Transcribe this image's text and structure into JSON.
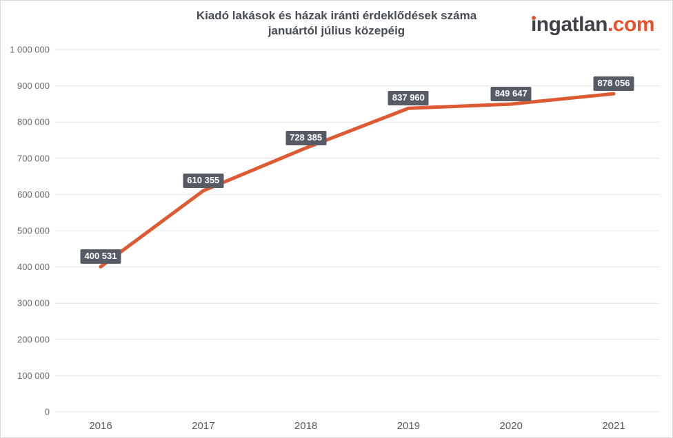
{
  "title": {
    "line1": "Kiadó lakások és házak iránti érdeklődések száma",
    "line2": "januártól július közepéig"
  },
  "logo": {
    "text": "ingatlan.com",
    "i_stem": "ı",
    "rest": "ngatlan",
    "tld": ".com",
    "dark_color": "#3f4347",
    "accent_color": "#e8512d"
  },
  "chart_data": {
    "type": "line",
    "title": "Kiadó lakások és házak iránti érdeklődések száma januártól július közepéig",
    "categories": [
      "2016",
      "2017",
      "2018",
      "2019",
      "2020",
      "2021"
    ],
    "values": [
      400531,
      610355,
      728385,
      837960,
      849647,
      878056
    ],
    "point_labels": [
      "400 531",
      "610 355",
      "728 385",
      "837 960",
      "849 647",
      "878 056"
    ],
    "xlabel": "",
    "ylabel": "",
    "ylim": [
      0,
      1000000
    ],
    "ytick_values": [
      0,
      100000,
      200000,
      300000,
      400000,
      500000,
      600000,
      700000,
      800000,
      900000,
      1000000
    ],
    "ytick_labels": [
      "0",
      "100 000",
      "200 000",
      "300 000",
      "400 000",
      "500 000",
      "600 000",
      "700 000",
      "800 000",
      "900 000",
      "1 000 000"
    ],
    "grid": true,
    "legend": false,
    "line_color": "#dd5a33",
    "line_width": 5,
    "label_bg": "#575b66",
    "label_text_color": "#ffffff",
    "grid_color": "#e4e4e4",
    "y_axis_text_color": "#6b6b6b",
    "x_axis_text_color": "#595959"
  }
}
